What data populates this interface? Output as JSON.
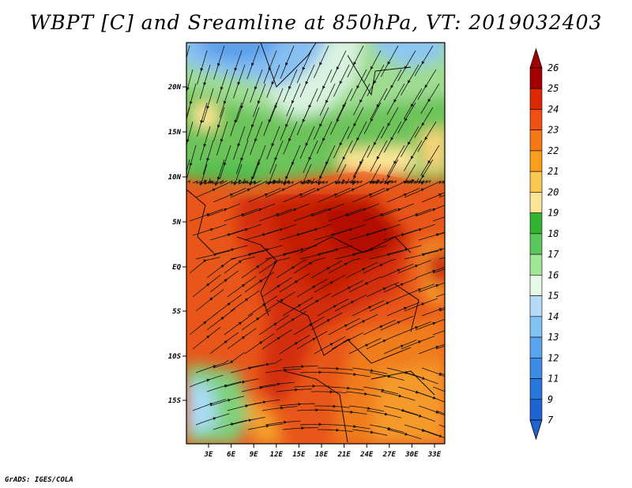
{
  "title": "WBPT [C] and Sreamline at 850hPa, VT: 2019032403",
  "footer": "GrADS: IGES/COLA",
  "map": {
    "lat_ticks": [
      "20N",
      "15N",
      "10N",
      "5N",
      "EQ",
      "5S",
      "10S",
      "15S"
    ],
    "lon_ticks": [
      "3E",
      "6E",
      "9E",
      "12E",
      "15E",
      "18E",
      "21E",
      "24E",
      "27E",
      "30E",
      "33E"
    ]
  },
  "colorbar": {
    "levels": [
      {
        "label": "26",
        "color": "#a50000"
      },
      {
        "label": "25",
        "color": "#c80a00"
      },
      {
        "label": "24",
        "color": "#e02800"
      },
      {
        "label": "23",
        "color": "#f05014"
      },
      {
        "label": "22",
        "color": "#f57814"
      },
      {
        "label": "21",
        "color": "#fa9e1e"
      },
      {
        "label": "20",
        "color": "#fcc850"
      },
      {
        "label": "19",
        "color": "#fde596"
      },
      {
        "label": "18",
        "color": "#32b432"
      },
      {
        "label": "17",
        "color": "#5ac85a"
      },
      {
        "label": "16",
        "color": "#a0e696"
      },
      {
        "label": "15",
        "color": "#e6fae6"
      },
      {
        "label": "14",
        "color": "#b4dcfa"
      },
      {
        "label": "13",
        "color": "#82c3f5"
      },
      {
        "label": "12",
        "color": "#5aa5f0"
      },
      {
        "label": "11",
        "color": "#3c8ce6"
      },
      {
        "label": "9",
        "color": "#2878dc"
      },
      {
        "label": "7",
        "color": "#1e64d2"
      }
    ],
    "top_color": "#a50000",
    "bottom_color": "#1e64d2"
  }
}
